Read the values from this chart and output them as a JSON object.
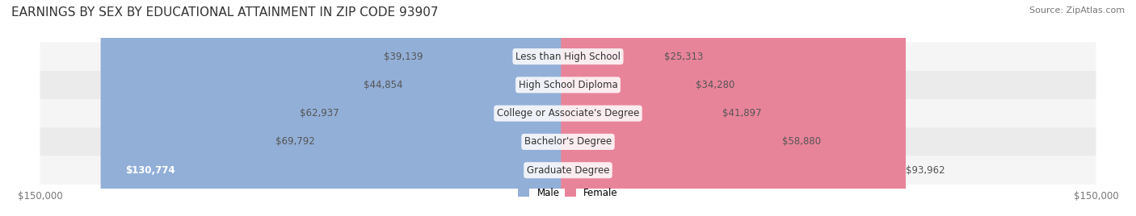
{
  "title": "EARNINGS BY SEX BY EDUCATIONAL ATTAINMENT IN ZIP CODE 93907",
  "source": "Source: ZipAtlas.com",
  "categories": [
    "Less than High School",
    "High School Diploma",
    "College or Associate's Degree",
    "Bachelor's Degree",
    "Graduate Degree"
  ],
  "male_values": [
    39139,
    44854,
    62937,
    69792,
    130774
  ],
  "female_values": [
    25313,
    34280,
    41897,
    58880,
    93962
  ],
  "max_val": 150000,
  "male_color": "#92afd7",
  "female_color": "#e8849a",
  "male_label": "Male",
  "female_label": "Female",
  "bar_bg_color": "#e8e8e8",
  "row_bg_colors": [
    "#f5f5f5",
    "#ebebeb"
  ],
  "title_fontsize": 11,
  "source_fontsize": 8,
  "label_fontsize": 8.5,
  "tick_label": "$150,000",
  "background_color": "#ffffff"
}
